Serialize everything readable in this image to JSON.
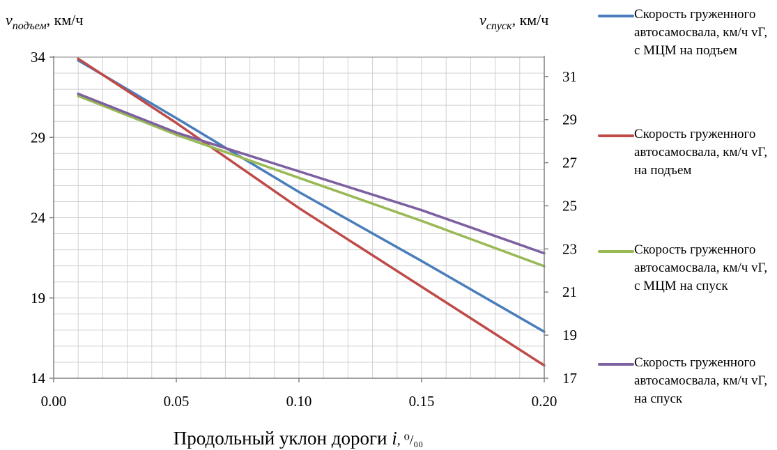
{
  "chart_data": {
    "type": "line",
    "left_axis_title": {
      "main": "v",
      "sub": "подъем",
      "unit": ", км/ч"
    },
    "right_axis_title": {
      "main": "v",
      "sub": "спуск",
      "unit": ", км/ч"
    },
    "xlabel": {
      "main": "Продольный уклон дороги ",
      "var": "i",
      "unit": ", ⁰/₀₀"
    },
    "xlim": [
      0.0,
      0.2
    ],
    "x_ticks": [
      "0.00",
      "0.05",
      "0.10",
      "0.15",
      "0.20"
    ],
    "y_left_lim": [
      14,
      34
    ],
    "y_left_ticks": [
      "34",
      "29",
      "24",
      "19",
      "14"
    ],
    "y_right_lim": [
      17,
      31.9
    ],
    "y_right_ticks": [
      "31",
      "29",
      "27",
      "25",
      "23",
      "21",
      "19",
      "17"
    ],
    "grid": true,
    "legend_position": "right",
    "series": [
      {
        "name": "Скорость груженного автосамосвала, км/ч vГ, с МЦМ на подъем",
        "axis": "left",
        "color": "#4a7ebb",
        "x": [
          0.01,
          0.05,
          0.1,
          0.15,
          0.2
        ],
        "y": [
          33.8,
          30.2,
          25.6,
          21.3,
          16.9
        ]
      },
      {
        "name": "Скорость груженного автосамосвала, км/ч vГ, на подъем",
        "axis": "left",
        "color": "#be4b48",
        "x": [
          0.01,
          0.05,
          0.1,
          0.15,
          0.2
        ],
        "y": [
          33.9,
          29.9,
          24.6,
          19.7,
          14.8
        ]
      },
      {
        "name": "Скорость груженного автосамосвала, км/ч vГ, с МЦМ на спуск",
        "axis": "right",
        "color": "#98b954",
        "x": [
          0.01,
          0.05,
          0.1,
          0.15,
          0.2
        ],
        "y": [
          30.1,
          28.3,
          26.3,
          24.3,
          22.2
        ]
      },
      {
        "name": "Скорость груженного автосамосвала, км/ч vГ, на спуск",
        "axis": "right",
        "color": "#7d60a0",
        "x": [
          0.01,
          0.05,
          0.1,
          0.15,
          0.2
        ],
        "y": [
          30.2,
          28.4,
          26.6,
          24.8,
          22.8
        ]
      }
    ]
  }
}
